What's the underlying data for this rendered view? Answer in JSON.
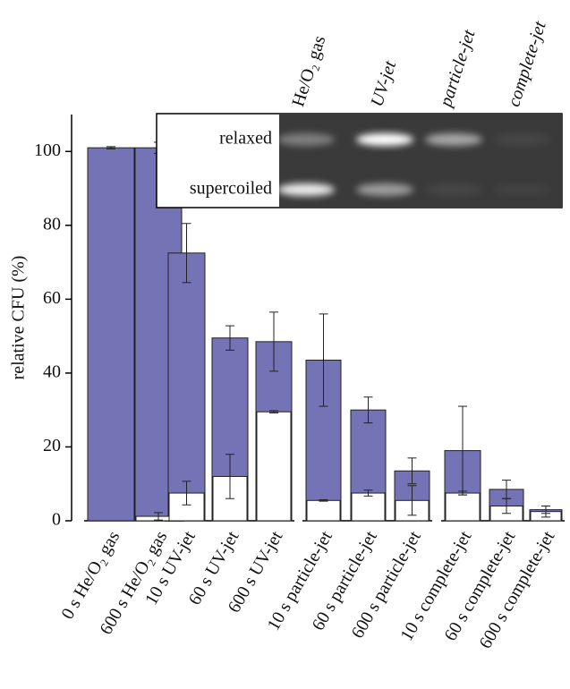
{
  "chart_data": {
    "type": "bar",
    "y_label": "relative CFU (%)",
    "categories": [
      "0 s He/O₂ gas",
      "600 s He/O₂ gas",
      "10 s UV-jet",
      "60 s UV-jet",
      "600 s UV-jet",
      "10 s particle-jet",
      "60 s particle-jet",
      "600 s particle-jet",
      "10 s complete-jet",
      "60 s complete-jet",
      "600 s complete-jet"
    ],
    "series": [
      {
        "color": "#7473b5",
        "values": [
          101,
          101,
          72.5,
          49.5,
          48.5,
          43.5,
          30,
          13.5,
          19,
          8.5,
          3
        ],
        "errors": [
          0.3,
          1.5,
          8,
          3.3,
          8,
          12.5,
          3.5,
          3.5,
          12,
          2.5,
          1
        ]
      },
      {
        "color": "#ffffff",
        "values": [
          0,
          1.2,
          7.5,
          12,
          29.5,
          5.5,
          7.5,
          5.5,
          7.5,
          4,
          2.5
        ],
        "errors": [
          0,
          1,
          3.2,
          6,
          0.3,
          0.2,
          0.8,
          4,
          0.5,
          2,
          1.5
        ]
      }
    ],
    "ylim": [
      0,
      110
    ],
    "yticks": [
      0,
      20,
      40,
      60,
      80,
      100
    ],
    "inset": {
      "lanes": [
        "He/O₂ gas",
        "UV-jet",
        "particle-jet",
        "complete-jet"
      ],
      "bands": [
        "relaxed",
        "supercoiled"
      ]
    }
  }
}
